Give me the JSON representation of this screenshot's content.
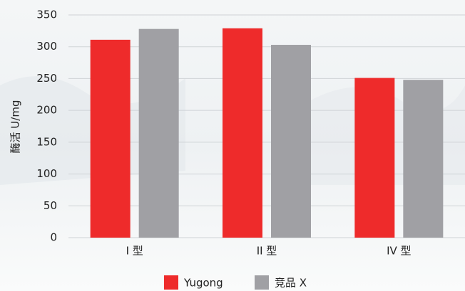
{
  "chart_data": {
    "type": "bar",
    "y_label": "酶活 U/mg",
    "categories": [
      "I 型",
      "II 型",
      "IV 型"
    ],
    "series": [
      {
        "name": "Yugong",
        "color": "#ee2b2b",
        "values": [
          311,
          329,
          251
        ]
      },
      {
        "name": "竞品 X",
        "color": "#a0a0a4",
        "values": [
          328,
          303,
          248
        ]
      }
    ],
    "ylim": [
      0,
      350
    ],
    "yticks": [
      0,
      50,
      100,
      150,
      200,
      250,
      300,
      350
    ],
    "grid": true
  }
}
